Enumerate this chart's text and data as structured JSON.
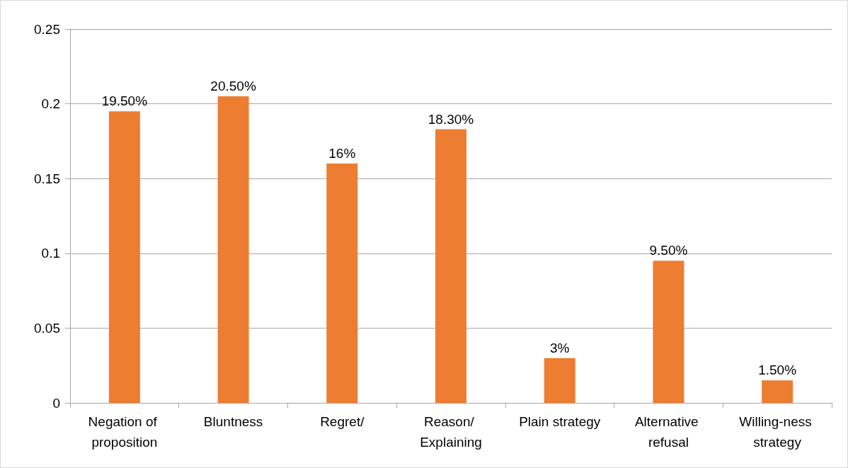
{
  "chart_data": {
    "type": "bar",
    "categories": [
      "Negation of proposition",
      "Bluntness",
      "Regret/",
      "Reason/ Explaining",
      "Plain strategy",
      "Alternative refusal",
      "Willing-ness strategy"
    ],
    "values": [
      0.195,
      0.205,
      0.16,
      0.183,
      0.03,
      0.095,
      0.015
    ],
    "value_labels": [
      "19.50%",
      "20.50%",
      "16%",
      "18.30%",
      "3%",
      "9.50%",
      "1.50%"
    ],
    "color": "#ed7d31",
    "ylim": [
      0,
      0.25
    ],
    "yticks": [
      0,
      0.05,
      0.1,
      0.15,
      0.2,
      0.25
    ],
    "grid": "y"
  }
}
